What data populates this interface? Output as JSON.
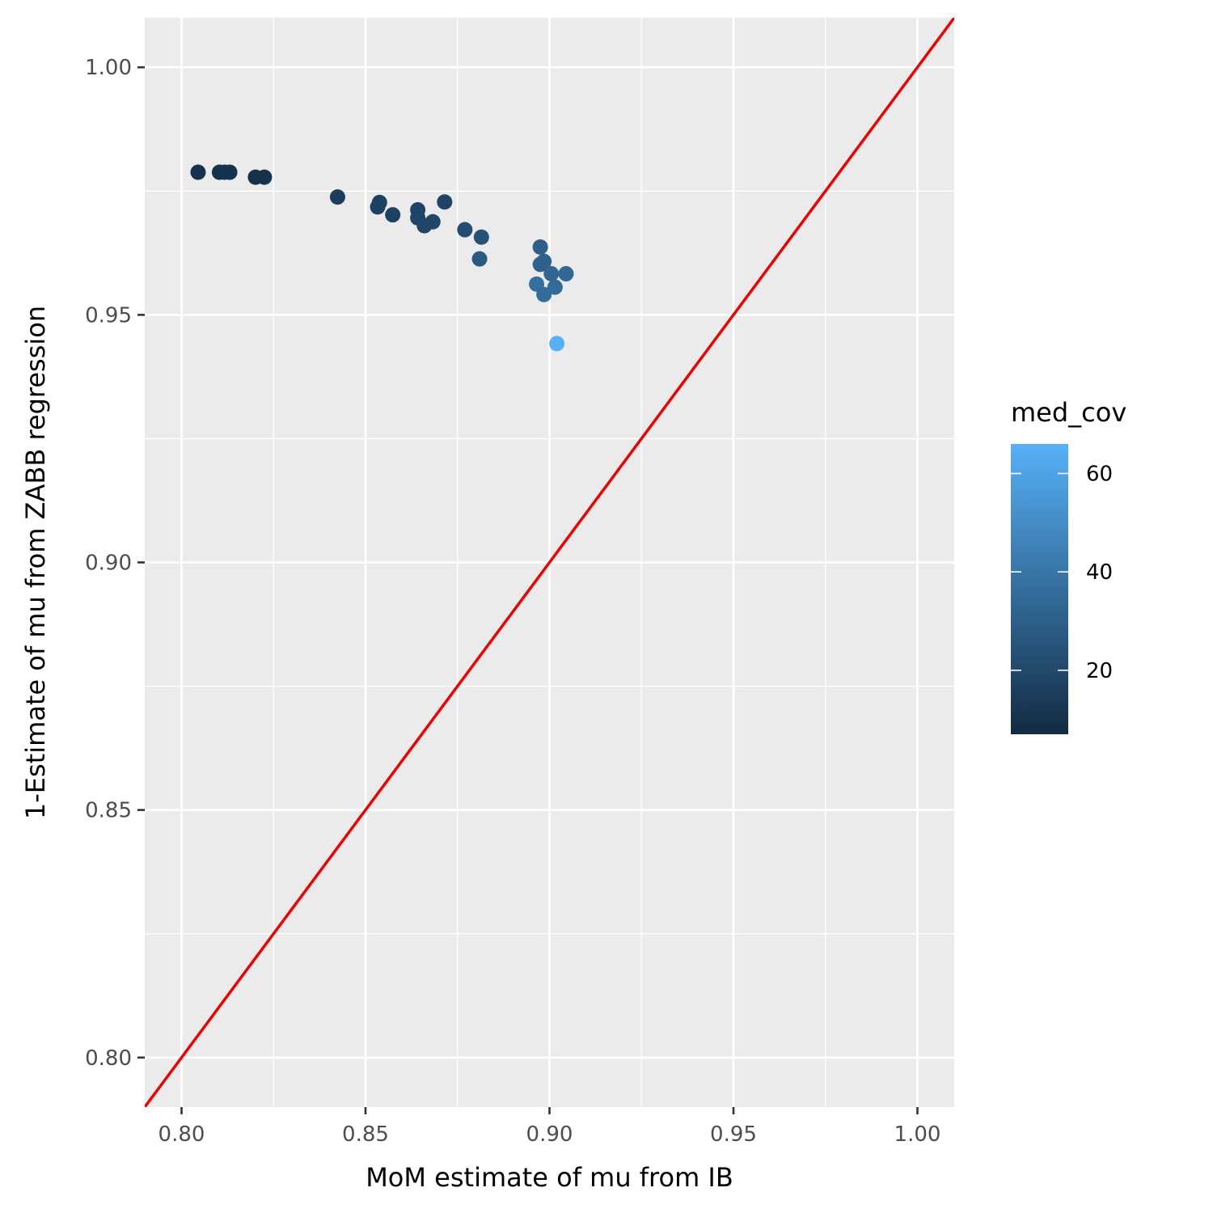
{
  "chart_data": {
    "type": "scatter",
    "title": "",
    "xlabel": "MoM estimate of mu from IB",
    "ylabel": "1-Estimate of mu from ZABB regression",
    "xlim": [
      0.79,
      1.01
    ],
    "ylim": [
      0.79,
      1.01
    ],
    "x_ticks": [
      0.8,
      0.85,
      0.9,
      0.95,
      1.0
    ],
    "y_ticks": [
      0.8,
      0.85,
      0.9,
      0.95,
      1.0
    ],
    "x_tick_labels": [
      "0.80",
      "0.85",
      "0.90",
      "0.95",
      "1.00"
    ],
    "y_tick_labels": [
      "0.80",
      "0.85",
      "0.90",
      "0.95",
      "1.00"
    ],
    "grid": true,
    "reference_line": {
      "slope": 1,
      "intercept": 0,
      "color": "#ee0000"
    },
    "color_legend": {
      "title": "med_cov",
      "min": 7,
      "max": 66,
      "breaks": [
        20,
        40,
        60
      ],
      "break_labels": [
        "20",
        "40",
        "60"
      ],
      "low_color": "#132b43",
      "high_color": "#56b1f7",
      "placement": "right"
    },
    "points": [
      {
        "x": 0.8045,
        "y": 0.9788,
        "c": 10
      },
      {
        "x": 0.8103,
        "y": 0.9788,
        "c": 10
      },
      {
        "x": 0.8117,
        "y": 0.9788,
        "c": 10
      },
      {
        "x": 0.8131,
        "y": 0.9788,
        "c": 10
      },
      {
        "x": 0.8201,
        "y": 0.9778,
        "c": 9
      },
      {
        "x": 0.8225,
        "y": 0.9778,
        "c": 10
      },
      {
        "x": 0.8424,
        "y": 0.9738,
        "c": 15
      },
      {
        "x": 0.8538,
        "y": 0.9727,
        "c": 17
      },
      {
        "x": 0.8533,
        "y": 0.9718,
        "c": 17
      },
      {
        "x": 0.8574,
        "y": 0.9702,
        "c": 17
      },
      {
        "x": 0.8642,
        "y": 0.9712,
        "c": 18
      },
      {
        "x": 0.8642,
        "y": 0.9696,
        "c": 18
      },
      {
        "x": 0.866,
        "y": 0.968,
        "c": 19
      },
      {
        "x": 0.8683,
        "y": 0.9688,
        "c": 19
      },
      {
        "x": 0.8715,
        "y": 0.9728,
        "c": 18
      },
      {
        "x": 0.877,
        "y": 0.9672,
        "c": 22
      },
      {
        "x": 0.8815,
        "y": 0.9657,
        "c": 24
      },
      {
        "x": 0.881,
        "y": 0.9613,
        "c": 27
      },
      {
        "x": 0.8975,
        "y": 0.9637,
        "c": 30
      },
      {
        "x": 0.8975,
        "y": 0.9602,
        "c": 31
      },
      {
        "x": 0.8985,
        "y": 0.9608,
        "c": 31
      },
      {
        "x": 0.9005,
        "y": 0.9583,
        "c": 33
      },
      {
        "x": 0.9045,
        "y": 0.9583,
        "c": 34
      },
      {
        "x": 0.8965,
        "y": 0.9562,
        "c": 37
      },
      {
        "x": 0.9015,
        "y": 0.9556,
        "c": 35
      },
      {
        "x": 0.8985,
        "y": 0.9541,
        "c": 36
      },
      {
        "x": 0.902,
        "y": 0.9442,
        "c": 66
      }
    ]
  }
}
